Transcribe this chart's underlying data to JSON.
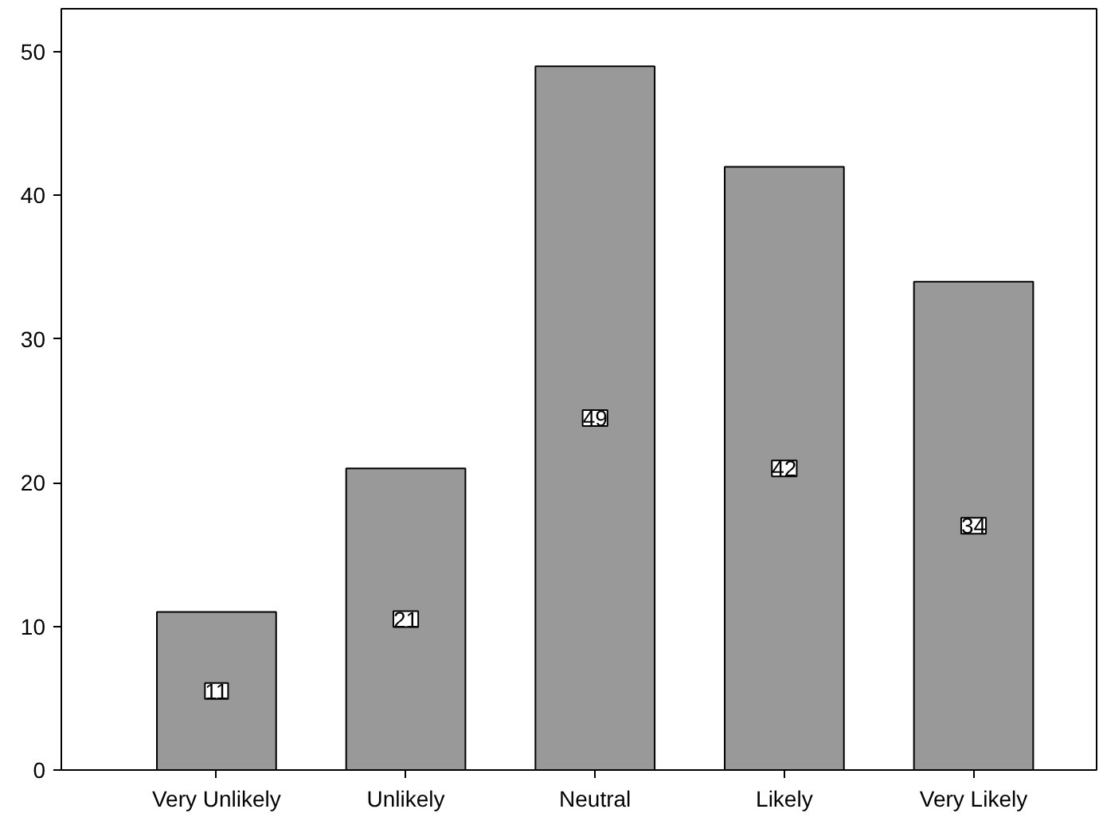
{
  "chart_data": {
    "type": "bar",
    "categories": [
      "Very Unlikely",
      "Unlikely",
      "Neutral",
      "Likely",
      "Very Likely"
    ],
    "values": [
      11,
      21,
      49,
      42,
      34
    ],
    "color": "#999999",
    "ylim": [
      0,
      53
    ],
    "yticks": [
      0,
      10,
      20,
      30,
      40,
      50
    ],
    "grid": false,
    "data_labels": true
  }
}
